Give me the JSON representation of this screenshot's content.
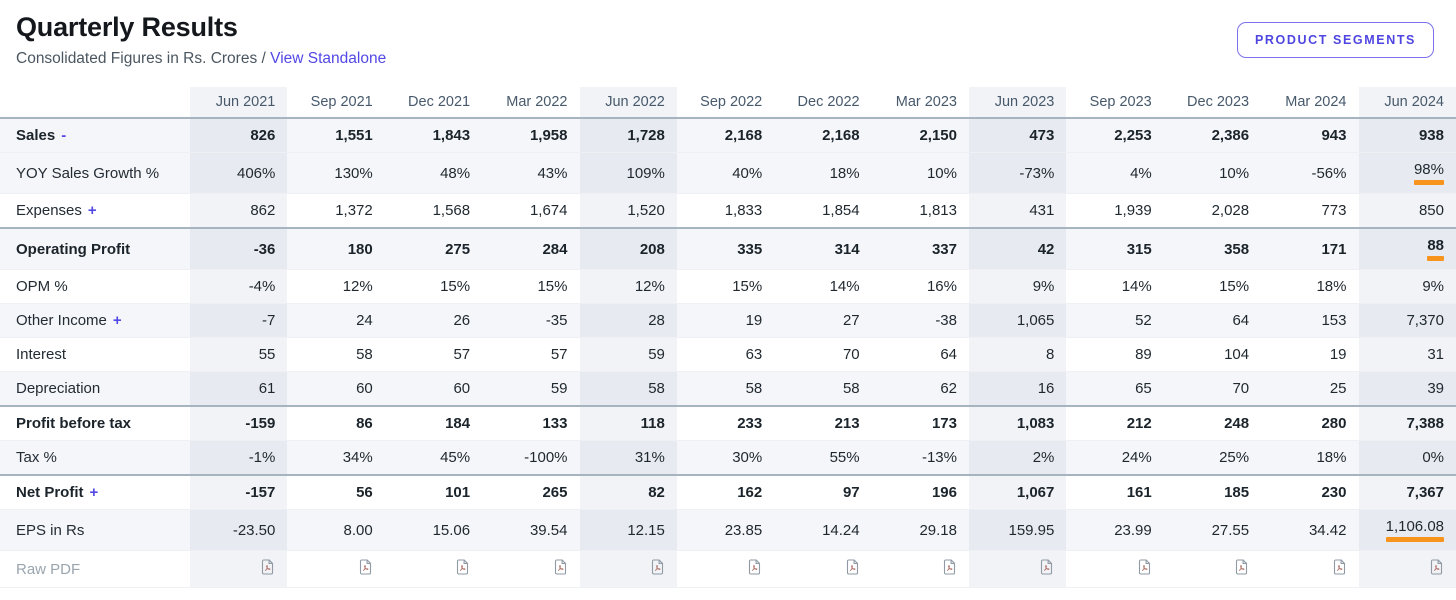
{
  "header": {
    "title": "Quarterly Results",
    "subtitle": "Consolidated Figures in Rs. Crores /",
    "toggle_link": "View Standalone",
    "button_label": "PRODUCT SEGMENTS"
  },
  "colors": {
    "accent": "#5248e5",
    "underline_orange": "#f7941e",
    "stripe_bg": "#f5f6fa",
    "column_highlight": "rgba(113,119,170,0.09)",
    "strong_border": "#a6b4c0",
    "header_text": "#47596b",
    "muted_text": "#9aa5ae",
    "pdf_icon": "#8f9aa4"
  },
  "table": {
    "columns": [
      "Jun 2021",
      "Sep 2021",
      "Dec 2021",
      "Mar 2022",
      "Jun 2022",
      "Sep 2022",
      "Dec 2022",
      "Mar 2023",
      "Jun 2023",
      "Sep 2023",
      "Dec 2023",
      "Mar 2024",
      "Jun 2024"
    ],
    "highlight_columns": [
      0,
      4,
      8,
      12
    ],
    "rows": [
      {
        "label": "Sales",
        "toggle": "-",
        "bold": true,
        "striped": true,
        "values": [
          "826",
          "1,551",
          "1,843",
          "1,958",
          "1,728",
          "2,168",
          "2,168",
          "2,150",
          "473",
          "2,253",
          "2,386",
          "943",
          "938"
        ]
      },
      {
        "label": "YOY Sales Growth %",
        "striped": true,
        "underline_cols": [
          12
        ],
        "values": [
          "406%",
          "130%",
          "48%",
          "43%",
          "109%",
          "40%",
          "18%",
          "10%",
          "-73%",
          "4%",
          "10%",
          "-56%",
          "98%"
        ]
      },
      {
        "label": "Expenses",
        "toggle": "+",
        "values": [
          "862",
          "1,372",
          "1,568",
          "1,674",
          "1,520",
          "1,833",
          "1,854",
          "1,813",
          "431",
          "1,939",
          "2,028",
          "773",
          "850"
        ]
      },
      {
        "label": "Operating Profit",
        "bold": true,
        "striped": true,
        "section_border": true,
        "underline_cols": [
          12
        ],
        "values": [
          "-36",
          "180",
          "275",
          "284",
          "208",
          "335",
          "314",
          "337",
          "42",
          "315",
          "358",
          "171",
          "88"
        ]
      },
      {
        "label": "OPM %",
        "values": [
          "-4%",
          "12%",
          "15%",
          "15%",
          "12%",
          "15%",
          "14%",
          "16%",
          "9%",
          "14%",
          "15%",
          "18%",
          "9%"
        ]
      },
      {
        "label": "Other Income",
        "toggle": "+",
        "striped": true,
        "values": [
          "-7",
          "24",
          "26",
          "-35",
          "28",
          "19",
          "27",
          "-38",
          "1,065",
          "52",
          "64",
          "153",
          "7,370"
        ]
      },
      {
        "label": "Interest",
        "values": [
          "55",
          "58",
          "57",
          "57",
          "59",
          "63",
          "70",
          "64",
          "8",
          "89",
          "104",
          "19",
          "31"
        ]
      },
      {
        "label": "Depreciation",
        "striped": true,
        "values": [
          "61",
          "60",
          "60",
          "59",
          "58",
          "58",
          "58",
          "62",
          "16",
          "65",
          "70",
          "25",
          "39"
        ]
      },
      {
        "label": "Profit before tax",
        "bold": true,
        "section_border": true,
        "values": [
          "-159",
          "86",
          "184",
          "133",
          "118",
          "233",
          "213",
          "173",
          "1,083",
          "212",
          "248",
          "280",
          "7,388"
        ]
      },
      {
        "label": "Tax %",
        "striped": true,
        "values": [
          "-1%",
          "34%",
          "45%",
          "-100%",
          "31%",
          "30%",
          "55%",
          "-13%",
          "2%",
          "24%",
          "25%",
          "18%",
          "0%"
        ]
      },
      {
        "label": "Net Profit",
        "toggle": "+",
        "bold": true,
        "section_border": true,
        "values": [
          "-157",
          "56",
          "101",
          "265",
          "82",
          "162",
          "97",
          "196",
          "1,067",
          "161",
          "185",
          "230",
          "7,367"
        ]
      },
      {
        "label": "EPS in Rs",
        "striped": true,
        "underline_cols": [
          12
        ],
        "values": [
          "-23.50",
          "8.00",
          "15.06",
          "39.54",
          "12.15",
          "23.85",
          "14.24",
          "29.18",
          "159.95",
          "23.99",
          "27.55",
          "34.42",
          "1,106.08"
        ]
      },
      {
        "label": "Raw PDF",
        "muted": true,
        "pdf_row": true,
        "values": []
      }
    ]
  }
}
